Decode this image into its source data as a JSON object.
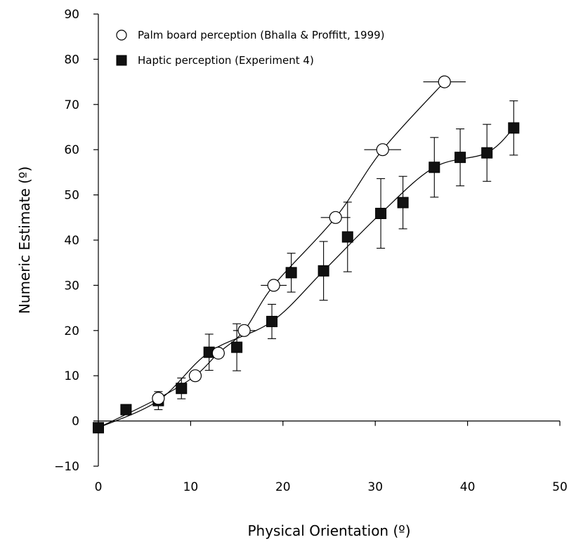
{
  "chart_data": {
    "type": "scatter",
    "title": "",
    "xlabel": "Physical Orientation (º)",
    "ylabel": "Numeric Estimate (º)",
    "xlim": [
      0,
      50
    ],
    "ylim": [
      -10,
      90
    ],
    "xticks": [
      0,
      10,
      20,
      30,
      40,
      50
    ],
    "yticks": [
      -10,
      0,
      10,
      20,
      30,
      40,
      50,
      60,
      70,
      80,
      90
    ],
    "xtick_labels": [
      "0",
      "10",
      "20",
      "30",
      "40",
      "50"
    ],
    "ytick_labels": [
      "−10",
      "0",
      "10",
      "20",
      "30",
      "40",
      "50",
      "60",
      "70",
      "80",
      "90"
    ],
    "grid": false,
    "legend_position": "top-left",
    "series": [
      {
        "name": "Palm board perception (Bhalla & Proffitt, 1999)",
        "marker": "open-circle",
        "points": [
          {
            "x": 0,
            "y": -1.5,
            "xerr": 0
          },
          {
            "x": 6.5,
            "y": 5,
            "xerr": 0.5
          },
          {
            "x": 10.5,
            "y": 10,
            "xerr": 0.6
          },
          {
            "x": 13,
            "y": 15,
            "xerr": 0.7
          },
          {
            "x": 15.8,
            "y": 20,
            "xerr": 1.2
          },
          {
            "x": 19,
            "y": 30,
            "xerr": 1.4
          },
          {
            "x": 25.7,
            "y": 45,
            "xerr": 1.6
          },
          {
            "x": 30.8,
            "y": 60,
            "xerr": 2.0
          },
          {
            "x": 37.5,
            "y": 75,
            "xerr": 2.3
          }
        ]
      },
      {
        "name": "Haptic perception (Experiment 4)",
        "marker": "filled-square",
        "points": [
          {
            "x": 0,
            "y": -1.5,
            "yerr": 0.8
          },
          {
            "x": 3,
            "y": 2.5,
            "yerr": 0.8
          },
          {
            "x": 6.5,
            "y": 4.5,
            "yerr": 2
          },
          {
            "x": 9,
            "y": 7.2,
            "yerr": 2.3
          },
          {
            "x": 12,
            "y": 15.2,
            "yerr": 4
          },
          {
            "x": 15,
            "y": 16.3,
            "yerr": 5.2
          },
          {
            "x": 18.8,
            "y": 22,
            "yerr": 3.8
          },
          {
            "x": 20.9,
            "y": 32.8,
            "yerr": 4.3
          },
          {
            "x": 24.4,
            "y": 33.2,
            "yerr": 6.5
          },
          {
            "x": 27,
            "y": 40.7,
            "yerr": 7.7
          },
          {
            "x": 30.6,
            "y": 45.9,
            "yerr": 7.7
          },
          {
            "x": 33,
            "y": 48.3,
            "yerr": 5.8
          },
          {
            "x": 36.4,
            "y": 56.1,
            "yerr": 6.6
          },
          {
            "x": 39.2,
            "y": 58.3,
            "yerr": 6.3
          },
          {
            "x": 42.1,
            "y": 59.3,
            "yerr": 6.3
          },
          {
            "x": 45,
            "y": 64.8,
            "yerr": 6
          }
        ]
      }
    ]
  }
}
